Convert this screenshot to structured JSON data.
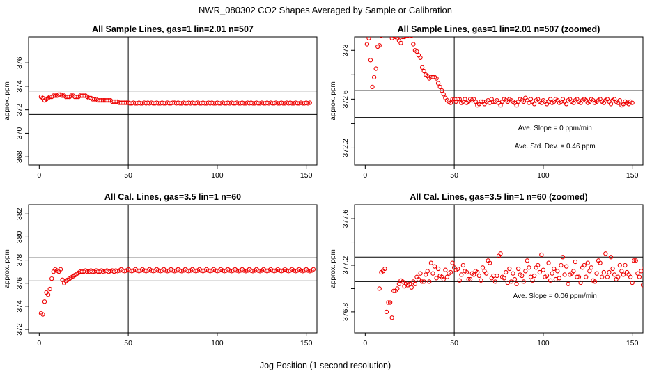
{
  "main_title": "NWR_080302  CO2 Shapes Averaged by Sample or Calibration",
  "xlabel": "Jog Position (1 second resolution)",
  "chart_data": [
    {
      "type": "scatter",
      "title": "All Sample Lines, gas=1 lin=2.01 n=507",
      "ylabel": "approx. ppm",
      "xlim": [
        -6,
        156
      ],
      "ylim": [
        367.3,
        378.2
      ],
      "xticks": [
        0,
        50,
        100,
        150
      ],
      "yticks": [
        368,
        370,
        372,
        374,
        376
      ],
      "hlines": [
        373.6,
        371.6
      ],
      "vline": 50,
      "annotations": [],
      "x_start": 1,
      "values": [
        373.1,
        373.0,
        372.8,
        372.9,
        373.0,
        373.1,
        373.1,
        373.2,
        373.2,
        373.2,
        373.3,
        373.3,
        373.2,
        373.2,
        373.1,
        373.1,
        373.1,
        373.2,
        373.2,
        373.1,
        373.1,
        373.1,
        373.2,
        373.2,
        373.2,
        373.2,
        373.1,
        373.0,
        373.0,
        372.9,
        372.9,
        372.9,
        372.8,
        372.8,
        372.8,
        372.8,
        372.8,
        372.8,
        372.8,
        372.8,
        372.7,
        372.7,
        372.7,
        372.7,
        372.6,
        372.6,
        372.6,
        372.6,
        372.6,
        372.6,
        372.55,
        372.55,
        372.6,
        372.55,
        372.55,
        372.6,
        372.55,
        372.55,
        372.6,
        372.55,
        372.6,
        372.55,
        372.6,
        372.55,
        372.55,
        372.6,
        372.55,
        372.55,
        372.6,
        372.55,
        372.55,
        372.6,
        372.55,
        372.55,
        372.6,
        372.6,
        372.55,
        372.6,
        372.55,
        372.55,
        372.6,
        372.55,
        372.55,
        372.6,
        372.55,
        372.6,
        372.55,
        372.55,
        372.6,
        372.55,
        372.55,
        372.6,
        372.55,
        372.55,
        372.6,
        372.55,
        372.6,
        372.55,
        372.55,
        372.6,
        372.55,
        372.55,
        372.6,
        372.55,
        372.55,
        372.6,
        372.55,
        372.6,
        372.55,
        372.55,
        372.6,
        372.55,
        372.55,
        372.6,
        372.55,
        372.55,
        372.6,
        372.55,
        372.6,
        372.55,
        372.55,
        372.6,
        372.55,
        372.55,
        372.6,
        372.55,
        372.55,
        372.6,
        372.55,
        372.6,
        372.55,
        372.55,
        372.6,
        372.55,
        372.55,
        372.6,
        372.55,
        372.55,
        372.6,
        372.55,
        372.6,
        372.55,
        372.55,
        372.6,
        372.55,
        372.55,
        372.6,
        372.55,
        372.55,
        372.6,
        372.55,
        372.6
      ]
    },
    {
      "type": "scatter",
      "title": "All Sample Lines, gas=1 lin=2.01 n=507 (zoomed)",
      "ylabel": "approx. ppm",
      "xlim": [
        -6,
        156
      ],
      "ylim": [
        372.06,
        373.11
      ],
      "xticks": [
        0,
        50,
        100,
        150
      ],
      "yticks": [
        372.2,
        372.6,
        373.0
      ],
      "minor_yticks": [
        372.4,
        372.8
      ],
      "hlines": [
        372.67,
        372.45
      ],
      "vline": 50,
      "annotations": [
        "Ave. Slope =  0  ppm/min",
        "Ave. Std. Dev. =  0.46  ppm"
      ],
      "x_start": 1,
      "values": [
        373.05,
        373.1,
        372.92,
        372.7,
        372.78,
        372.85,
        373.03,
        373.04,
        373.12,
        373.15,
        373.15,
        373.13,
        373.15,
        373.15,
        373.1,
        373.12,
        373.11,
        373.1,
        373.08,
        373.06,
        373.11,
        373.11,
        373.12,
        373.12,
        373.13,
        373.12,
        373.05,
        373.0,
        372.99,
        372.96,
        372.94,
        372.86,
        372.83,
        372.8,
        372.79,
        372.77,
        372.78,
        372.78,
        372.78,
        372.77,
        372.73,
        372.7,
        372.67,
        372.64,
        372.61,
        372.59,
        372.58,
        372.57,
        372.6,
        372.6,
        372.58,
        372.6,
        372.6,
        372.57,
        372.58,
        372.6,
        372.57,
        372.58,
        372.6,
        372.59,
        372.6,
        372.58,
        372.55,
        372.56,
        372.58,
        372.58,
        372.56,
        372.58,
        372.59,
        372.57,
        372.6,
        372.58,
        372.58,
        372.59,
        372.57,
        372.55,
        372.58,
        372.6,
        372.59,
        372.58,
        372.6,
        372.59,
        372.58,
        372.57,
        372.55,
        372.58,
        372.6,
        372.59,
        372.58,
        372.61,
        372.59,
        372.57,
        372.6,
        372.58,
        372.56,
        372.59,
        372.6,
        372.58,
        372.57,
        372.59,
        372.58,
        372.56,
        372.58,
        372.6,
        372.57,
        372.58,
        372.6,
        372.59,
        372.57,
        372.58,
        372.6,
        372.58,
        372.56,
        372.59,
        372.6,
        372.58,
        372.57,
        372.59,
        372.6,
        372.58,
        372.57,
        372.59,
        372.6,
        372.59,
        372.57,
        372.58,
        372.6,
        372.59,
        372.57,
        372.58,
        372.59,
        372.6,
        372.58,
        372.57,
        372.59,
        372.6,
        372.58,
        372.56,
        372.59,
        372.6,
        372.58,
        372.57,
        372.59,
        372.55,
        372.56,
        372.58,
        372.57,
        372.56,
        372.58,
        372.57
      ]
    },
    {
      "type": "scatter",
      "title": "All Cal. Lines, gas=3.5 lin=1 n=60",
      "ylabel": "approx. ppm",
      "xlim": [
        -6,
        156
      ],
      "ylim": [
        371.7,
        382.8
      ],
      "xticks": [
        0,
        50,
        100,
        150
      ],
      "yticks": [
        372,
        374,
        376,
        378,
        380,
        382
      ],
      "hlines": [
        378.2,
        376.2
      ],
      "vline": 50,
      "annotations": [],
      "x_start": 1,
      "values": [
        373.4,
        373.3,
        374.4,
        375.2,
        375.0,
        375.5,
        376.4,
        377.0,
        377.2,
        377.1,
        377.0,
        377.2,
        376.3,
        376.0,
        376.2,
        376.3,
        376.4,
        376.5,
        376.6,
        376.7,
        376.8,
        376.9,
        377.0,
        377.0,
        377.0,
        377.1,
        377.0,
        377.0,
        377.1,
        377.0,
        377.0,
        377.1,
        377.0,
        377.0,
        377.1,
        377.0,
        377.05,
        377.1,
        377.0,
        377.05,
        377.1,
        377.0,
        377.1,
        377.05,
        377.1,
        377.2,
        377.1,
        377.05,
        377.1,
        377.2,
        377.1,
        377.05,
        377.1,
        377.2,
        377.1,
        377.05,
        377.1,
        377.2,
        377.1,
        377.05,
        377.1,
        377.2,
        377.1,
        377.05,
        377.1,
        377.2,
        377.1,
        377.05,
        377.1,
        377.2,
        377.1,
        377.05,
        377.1,
        377.2,
        377.1,
        377.05,
        377.1,
        377.2,
        377.1,
        377.05,
        377.1,
        377.2,
        377.1,
        377.05,
        377.1,
        377.2,
        377.1,
        377.05,
        377.1,
        377.2,
        377.1,
        377.05,
        377.1,
        377.2,
        377.1,
        377.05,
        377.1,
        377.2,
        377.1,
        377.05,
        377.1,
        377.2,
        377.1,
        377.05,
        377.1,
        377.2,
        377.1,
        377.05,
        377.1,
        377.2,
        377.1,
        377.05,
        377.1,
        377.2,
        377.1,
        377.05,
        377.1,
        377.2,
        377.1,
        377.05,
        377.1,
        377.2,
        377.1,
        377.05,
        377.1,
        377.2,
        377.1,
        377.05,
        377.1,
        377.2,
        377.1,
        377.05,
        377.1,
        377.2,
        377.1,
        377.05,
        377.1,
        377.2,
        377.1,
        377.05,
        377.1,
        377.2,
        377.1,
        377.05,
        377.1,
        377.2,
        377.1,
        377.05,
        377.1,
        377.2,
        377.1,
        377.05,
        377.1,
        377.2
      ]
    },
    {
      "type": "scatter",
      "title": "All Cal. Lines, gas=3.5 lin=1 n=60 (zoomed)",
      "ylabel": "approx. ppm",
      "xlim": [
        -6,
        156
      ],
      "ylim": [
        376.62,
        377.72
      ],
      "xticks": [
        0,
        50,
        100,
        150
      ],
      "yticks": [
        376.8,
        377.2,
        377.6
      ],
      "minor_yticks": [
        377.0,
        377.4
      ],
      "hlines": [
        377.27,
        377.06
      ],
      "vline": 50,
      "annotations": [
        "Ave. Slope =  0.06  ppm/min"
      ],
      "x_start": 7,
      "values": [
        376.6,
        377.0,
        377.14,
        377.15,
        377.17,
        376.8,
        376.88,
        376.88,
        376.75,
        376.98,
        376.98,
        377.0,
        377.04,
        377.07,
        377.06,
        377.02,
        377.04,
        377.03,
        377.04,
        377.01,
        377.06,
        377.04,
        377.1,
        377.08,
        377.13,
        377.06,
        377.06,
        377.12,
        377.15,
        377.06,
        377.22,
        377.13,
        377.19,
        377.09,
        377.17,
        377.11,
        377.1,
        377.08,
        377.16,
        377.1,
        377.13,
        377.14,
        377.22,
        377.18,
        377.16,
        377.17,
        377.07,
        377.12,
        377.2,
        377.15,
        377.14,
        377.08,
        377.08,
        377.13,
        377.12,
        377.15,
        377.14,
        377.11,
        377.07,
        377.18,
        377.15,
        377.13,
        377.24,
        377.22,
        377.09,
        377.11,
        377.06,
        377.11,
        377.28,
        377.3,
        377.1,
        377.09,
        377.14,
        377.05,
        377.17,
        377.06,
        377.13,
        377.08,
        377.04,
        377.17,
        377.12,
        377.11,
        377.06,
        377.15,
        377.24,
        377.18,
        377.1,
        377.07,
        377.11,
        377.18,
        377.2,
        377.14,
        377.29,
        377.16,
        377.1,
        377.11,
        377.22,
        377.07,
        377.13,
        377.17,
        377.08,
        377.15,
        377.09,
        377.2,
        377.27,
        377.12,
        377.19,
        377.04,
        377.12,
        377.13,
        377.15,
        377.23,
        377.1,
        377.1,
        377.05,
        377.18,
        377.2,
        377.1,
        377.22,
        377.15,
        377.18,
        377.07,
        377.06,
        377.13,
        377.24,
        377.22,
        377.1,
        377.14,
        377.3,
        377.1,
        377.14,
        377.27,
        377.17,
        377.12,
        377.08,
        377.1,
        377.2,
        377.15,
        377.12,
        377.2,
        377.14,
        377.12,
        377.1,
        377.05,
        377.24,
        377.24,
        377.13,
        377.1,
        377.15,
        377.03,
        377.18,
        377.2,
        377.09,
        377.3
      ]
    }
  ]
}
